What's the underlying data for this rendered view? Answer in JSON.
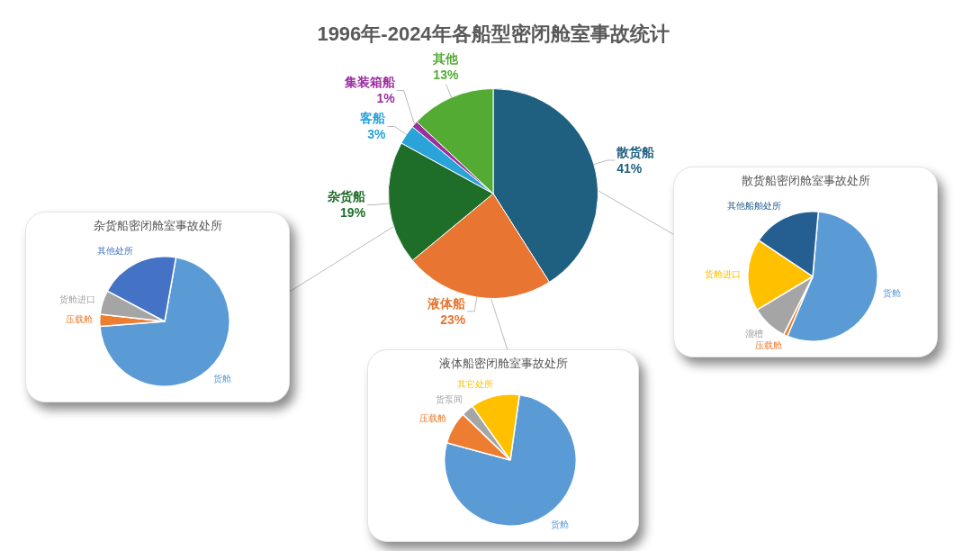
{
  "chart_data": [
    {
      "type": "pie",
      "title": "1996年-2024年各船型密闭舱室事故统计",
      "categories": [
        "散货船",
        "液体船",
        "杂货船",
        "客船",
        "集装箱船",
        "其他"
      ],
      "values": [
        41,
        23,
        19,
        3,
        1,
        13
      ],
      "value_labels": [
        "41%",
        "23%",
        "19%",
        "3%",
        "1%",
        "13%"
      ],
      "colors": [
        "#1f5f80",
        "#e87632",
        "#1e6e2a",
        "#2aa3d8",
        "#9b2f9e",
        "#54ab34"
      ]
    },
    {
      "type": "pie",
      "title": "杂货船密闭舱室事故处所",
      "categories": [
        "货舱",
        "压载舱",
        "货舱进口",
        "其他处所"
      ],
      "values": [
        71,
        3,
        6,
        20
      ],
      "colors": [
        "#5b9bd5",
        "#ed7d31",
        "#a5a5a5",
        "#4472c4"
      ]
    },
    {
      "type": "pie",
      "title": "散货船密闭舱室事故处所",
      "categories": [
        "货舱",
        "压载舱",
        "溜槽",
        "货舱进口",
        "其他船舶处所"
      ],
      "values": [
        55,
        1,
        9,
        18,
        17
      ],
      "colors": [
        "#5b9bd5",
        "#ed7d31",
        "#a5a5a5",
        "#ffc000",
        "#255e91"
      ]
    },
    {
      "type": "pie",
      "title": "液体船密闭舱室事故处所",
      "categories": [
        "货舱",
        "压载舱",
        "货泵间",
        "其它处所"
      ],
      "values": [
        77,
        8,
        3,
        12
      ],
      "colors": [
        "#5b9bd5",
        "#ed7d31",
        "#a5a5a5",
        "#ffc000"
      ]
    }
  ]
}
